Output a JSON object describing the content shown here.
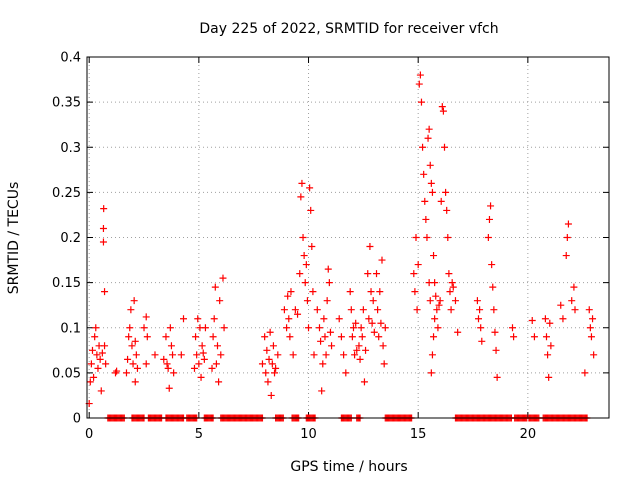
{
  "chart_data": {
    "type": "scatter",
    "title": "Day 225 of 2022, SRMTID for receiver vfch",
    "xlabel": "GPS time / hours",
    "ylabel": "SRMTID / TECUs",
    "xlim": [
      -0.1,
      23.7
    ],
    "ylim": [
      0,
      0.4
    ],
    "xticks": [
      0,
      5,
      10,
      15,
      20
    ],
    "yticks": [
      0,
      0.05,
      0.1,
      0.15,
      0.2,
      0.25,
      0.3,
      0.35,
      0.4
    ],
    "ytick_labels": [
      "0",
      "0.05",
      "0.1",
      "0.15",
      "0.2",
      "0.25",
      "0.3",
      "0.35",
      "0.4"
    ],
    "grid": true,
    "marker": "+",
    "series": [
      {
        "name": "SRMTID",
        "color": "#ff0000",
        "points": [
          [
            0.0,
            0.016
          ],
          [
            0.05,
            0.04
          ],
          [
            0.1,
            0.06
          ],
          [
            0.15,
            0.075
          ],
          [
            0.2,
            0.045
          ],
          [
            0.25,
            0.09
          ],
          [
            0.3,
            0.1
          ],
          [
            0.35,
            0.07
          ],
          [
            0.4,
            0.055
          ],
          [
            0.45,
            0.08
          ],
          [
            0.5,
            0.065
          ],
          [
            0.55,
            0.03
          ],
          [
            0.6,
            0.072
          ],
          [
            0.65,
            0.195
          ],
          [
            0.65,
            0.21
          ],
          [
            0.66,
            0.232
          ],
          [
            0.7,
            0.14
          ],
          [
            0.7,
            0.08
          ],
          [
            0.75,
            0.06
          ],
          [
            1.2,
            0.05
          ],
          [
            1.25,
            0.052
          ],
          [
            1.7,
            0.05
          ],
          [
            1.75,
            0.065
          ],
          [
            1.8,
            0.09
          ],
          [
            1.85,
            0.1
          ],
          [
            1.9,
            0.12
          ],
          [
            1.95,
            0.08
          ],
          [
            2.0,
            0.06
          ],
          [
            2.05,
            0.13
          ],
          [
            2.1,
            0.04
          ],
          [
            2.15,
            0.07
          ],
          [
            2.2,
            0.055
          ],
          [
            2.1,
            0.085
          ],
          [
            2.5,
            0.1
          ],
          [
            2.6,
            0.112
          ],
          [
            2.6,
            0.06
          ],
          [
            2.65,
            0.09
          ],
          [
            3.0,
            0.07
          ],
          [
            3.4,
            0.065
          ],
          [
            3.5,
            0.09
          ],
          [
            3.55,
            0.06
          ],
          [
            3.6,
            0.055
          ],
          [
            3.65,
            0.033
          ],
          [
            3.7,
            0.1
          ],
          [
            3.75,
            0.08
          ],
          [
            3.8,
            0.07
          ],
          [
            3.85,
            0.05
          ],
          [
            4.2,
            0.07
          ],
          [
            4.3,
            0.11
          ],
          [
            4.8,
            0.055
          ],
          [
            4.85,
            0.09
          ],
          [
            4.9,
            0.07
          ],
          [
            4.95,
            0.11
          ],
          [
            5.0,
            0.06
          ],
          [
            5.05,
            0.1
          ],
          [
            5.1,
            0.045
          ],
          [
            5.15,
            0.08
          ],
          [
            5.2,
            0.072
          ],
          [
            5.25,
            0.065
          ],
          [
            5.3,
            0.1
          ],
          [
            5.6,
            0.055
          ],
          [
            5.65,
            0.09
          ],
          [
            5.7,
            0.11
          ],
          [
            5.75,
            0.145
          ],
          [
            5.8,
            0.06
          ],
          [
            5.85,
            0.08
          ],
          [
            5.9,
            0.04
          ],
          [
            5.95,
            0.13
          ],
          [
            6.0,
            0.07
          ],
          [
            6.1,
            0.155
          ],
          [
            6.15,
            0.1
          ],
          [
            7.9,
            0.06
          ],
          [
            8.0,
            0.09
          ],
          [
            8.05,
            0.05
          ],
          [
            8.1,
            0.075
          ],
          [
            8.15,
            0.04
          ],
          [
            8.2,
            0.065
          ],
          [
            8.25,
            0.095
          ],
          [
            8.3,
            0.025
          ],
          [
            8.35,
            0.06
          ],
          [
            8.4,
            0.08
          ],
          [
            8.45,
            0.05
          ],
          [
            8.5,
            0.055
          ],
          [
            8.6,
            0.07
          ],
          [
            8.9,
            0.12
          ],
          [
            9.0,
            0.1
          ],
          [
            9.05,
            0.135
          ],
          [
            9.1,
            0.11
          ],
          [
            9.15,
            0.09
          ],
          [
            9.2,
            0.14
          ],
          [
            9.3,
            0.07
          ],
          [
            9.4,
            0.12
          ],
          [
            9.5,
            0.115
          ],
          [
            9.6,
            0.16
          ],
          [
            9.65,
            0.245
          ],
          [
            9.7,
            0.26
          ],
          [
            9.75,
            0.2
          ],
          [
            9.8,
            0.18
          ],
          [
            9.85,
            0.15
          ],
          [
            9.9,
            0.17
          ],
          [
            9.95,
            0.13
          ],
          [
            10.0,
            0.1
          ],
          [
            10.05,
            0.255
          ],
          [
            10.1,
            0.23
          ],
          [
            10.15,
            0.19
          ],
          [
            10.2,
            0.14
          ],
          [
            10.25,
            0.07
          ],
          [
            10.4,
            0.12
          ],
          [
            10.5,
            0.1
          ],
          [
            10.55,
            0.085
          ],
          [
            10.6,
            0.03
          ],
          [
            10.65,
            0.06
          ],
          [
            10.7,
            0.11
          ],
          [
            10.75,
            0.09
          ],
          [
            10.8,
            0.07
          ],
          [
            10.85,
            0.13
          ],
          [
            10.9,
            0.165
          ],
          [
            10.95,
            0.15
          ],
          [
            11.0,
            0.095
          ],
          [
            11.05,
            0.08
          ],
          [
            11.4,
            0.11
          ],
          [
            11.5,
            0.09
          ],
          [
            11.6,
            0.07
          ],
          [
            11.7,
            0.05
          ],
          [
            11.9,
            0.14
          ],
          [
            11.95,
            0.12
          ],
          [
            12.0,
            0.09
          ],
          [
            12.05,
            0.1
          ],
          [
            12.1,
            0.07
          ],
          [
            12.15,
            0.105
          ],
          [
            12.2,
            0.075
          ],
          [
            12.3,
            0.08
          ],
          [
            12.35,
            0.065
          ],
          [
            12.4,
            0.1
          ],
          [
            12.45,
            0.09
          ],
          [
            12.5,
            0.12
          ],
          [
            12.55,
            0.04
          ],
          [
            12.6,
            0.075
          ],
          [
            12.7,
            0.16
          ],
          [
            12.75,
            0.11
          ],
          [
            12.8,
            0.19
          ],
          [
            12.85,
            0.14
          ],
          [
            12.9,
            0.105
          ],
          [
            12.95,
            0.13
          ],
          [
            13.0,
            0.095
          ],
          [
            13.1,
            0.16
          ],
          [
            13.15,
            0.12
          ],
          [
            13.2,
            0.09
          ],
          [
            13.25,
            0.14
          ],
          [
            13.3,
            0.105
          ],
          [
            13.35,
            0.175
          ],
          [
            13.4,
            0.08
          ],
          [
            13.45,
            0.06
          ],
          [
            13.5,
            0.1
          ],
          [
            14.8,
            0.16
          ],
          [
            14.85,
            0.14
          ],
          [
            14.9,
            0.2
          ],
          [
            14.95,
            0.12
          ],
          [
            15.0,
            0.17
          ],
          [
            15.05,
            0.37
          ],
          [
            15.1,
            0.38
          ],
          [
            15.15,
            0.35
          ],
          [
            15.2,
            0.3
          ],
          [
            15.25,
            0.27
          ],
          [
            15.3,
            0.24
          ],
          [
            15.35,
            0.22
          ],
          [
            15.4,
            0.2
          ],
          [
            15.45,
            0.31
          ],
          [
            15.5,
            0.32
          ],
          [
            15.55,
            0.28
          ],
          [
            15.6,
            0.26
          ],
          [
            15.65,
            0.25
          ],
          [
            15.7,
            0.18
          ],
          [
            15.75,
            0.15
          ],
          [
            15.8,
            0.135
          ],
          [
            15.85,
            0.12
          ],
          [
            15.5,
            0.15
          ],
          [
            15.55,
            0.13
          ],
          [
            15.6,
            0.05
          ],
          [
            15.65,
            0.07
          ],
          [
            15.7,
            0.09
          ],
          [
            15.75,
            0.11
          ],
          [
            15.9,
            0.1
          ],
          [
            15.95,
            0.125
          ],
          [
            16.0,
            0.13
          ],
          [
            16.05,
            0.24
          ],
          [
            16.1,
            0.345
          ],
          [
            16.15,
            0.34
          ],
          [
            16.2,
            0.3
          ],
          [
            16.25,
            0.25
          ],
          [
            16.3,
            0.23
          ],
          [
            16.35,
            0.2
          ],
          [
            16.4,
            0.16
          ],
          [
            16.45,
            0.14
          ],
          [
            16.5,
            0.12
          ],
          [
            16.55,
            0.15
          ],
          [
            16.6,
            0.145
          ],
          [
            16.7,
            0.13
          ],
          [
            16.8,
            0.095
          ],
          [
            17.7,
            0.13
          ],
          [
            17.75,
            0.11
          ],
          [
            17.8,
            0.12
          ],
          [
            17.85,
            0.1
          ],
          [
            17.9,
            0.085
          ],
          [
            18.2,
            0.2
          ],
          [
            18.25,
            0.22
          ],
          [
            18.3,
            0.235
          ],
          [
            18.35,
            0.17
          ],
          [
            18.4,
            0.145
          ],
          [
            18.45,
            0.12
          ],
          [
            18.5,
            0.095
          ],
          [
            18.55,
            0.075
          ],
          [
            18.6,
            0.045
          ],
          [
            19.3,
            0.1
          ],
          [
            19.35,
            0.09
          ],
          [
            20.2,
            0.108
          ],
          [
            20.3,
            0.09
          ],
          [
            20.8,
            0.11
          ],
          [
            20.85,
            0.09
          ],
          [
            20.9,
            0.07
          ],
          [
            20.95,
            0.045
          ],
          [
            21.0,
            0.105
          ],
          [
            21.05,
            0.08
          ],
          [
            21.5,
            0.125
          ],
          [
            21.6,
            0.11
          ],
          [
            21.75,
            0.18
          ],
          [
            21.8,
            0.2
          ],
          [
            21.85,
            0.215
          ],
          [
            22.0,
            0.13
          ],
          [
            22.1,
            0.145
          ],
          [
            22.15,
            0.12
          ],
          [
            22.6,
            0.05
          ],
          [
            22.8,
            0.12
          ],
          [
            22.85,
            0.1
          ],
          [
            22.9,
            0.09
          ],
          [
            22.95,
            0.11
          ],
          [
            23.0,
            0.07
          ]
        ]
      }
    ],
    "zero_ranges": [
      [
        0.85,
        1.6
      ],
      [
        1.95,
        2.5
      ],
      [
        2.7,
        3.3
      ],
      [
        3.5,
        4.3
      ],
      [
        4.45,
        4.9
      ],
      [
        5.25,
        5.65
      ],
      [
        6.0,
        7.9
      ],
      [
        8.5,
        8.85
      ],
      [
        9.25,
        9.55
      ],
      [
        9.9,
        10.3
      ],
      [
        11.5,
        11.95
      ],
      [
        12.2,
        12.35
      ],
      [
        13.5,
        14.7
      ],
      [
        16.7,
        19.25
      ],
      [
        19.4,
        19.95
      ],
      [
        20.05,
        20.5
      ],
      [
        20.7,
        22.7
      ]
    ]
  }
}
